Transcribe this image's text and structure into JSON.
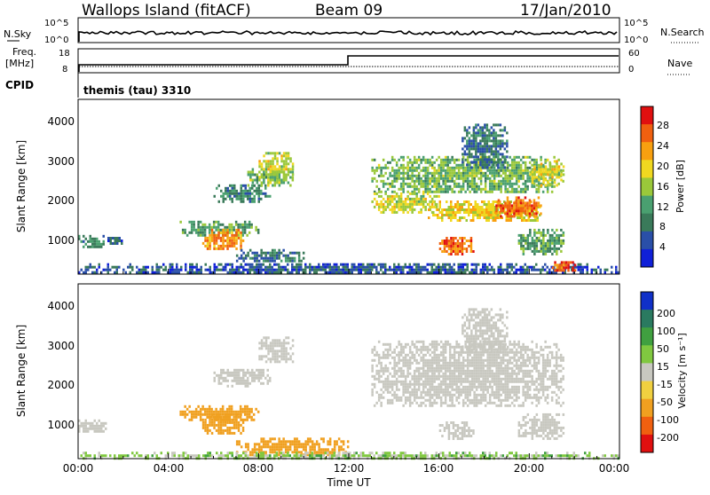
{
  "header": {
    "station": "Wallops Island (fitACF)",
    "beam": "Beam 09",
    "date": "17/Jan/2010"
  },
  "noise_panel": {
    "left_label": "N.Sky",
    "left_ticks": [
      "10^5",
      "10^0"
    ],
    "right_ticks": [
      "10^5",
      "10^0"
    ],
    "right_label": "N.Search"
  },
  "freq_panel": {
    "left_label_1": "Freq.",
    "left_label_2": "[MHz]",
    "left_ticks": [
      "18",
      "8"
    ],
    "right_ticks": [
      "60",
      "0"
    ],
    "right_label": "Nave",
    "cpid_label": "CPID"
  },
  "cpid": "themis (tau) 3310",
  "power_panel": {
    "ylabel": "Slant Range [km]",
    "yticks": [
      "4000",
      "3000",
      "2000",
      "1000"
    ],
    "colorbar_label": "Power [dB]",
    "colorbar_ticks": [
      "28",
      "24",
      "20",
      "16",
      "12",
      "8",
      "4"
    ]
  },
  "velocity_panel": {
    "ylabel": "Slant Range [km]",
    "yticks": [
      "4000",
      "3000",
      "2000",
      "1000"
    ],
    "colorbar_label": "Velocity [m s⁻¹]",
    "colorbar_ticks": [
      "200",
      "100",
      "50",
      "15",
      "-15",
      "-50",
      "-100",
      "-200"
    ]
  },
  "xaxis": {
    "label": "Time UT",
    "ticks": [
      "00:00",
      "04:00",
      "08:00",
      "12:00",
      "16:00",
      "20:00",
      "00:00"
    ]
  },
  "colors": {
    "power_scale": [
      "#1020d8",
      "#2a4fa8",
      "#3a7a5a",
      "#4aa070",
      "#9ac83a",
      "#f0d820",
      "#f8a010",
      "#f06010",
      "#e01010"
    ],
    "velocity_scale": [
      "#1030c8",
      "#2a7a60",
      "#40a040",
      "#80c840",
      "#c8c8c0",
      "#f0d040",
      "#f0a020",
      "#f06010",
      "#e01010"
    ]
  },
  "chart_data": [
    {
      "type": "heatmap",
      "name": "power",
      "xlabel": "Time UT",
      "ylabel": "Slant Range [km]",
      "xlim": [
        0,
        24
      ],
      "ylim": [
        180,
        4500
      ],
      "zlabel": "Power [dB]",
      "zlim": [
        0,
        32
      ],
      "regions": [
        {
          "t0": 0.0,
          "t1": 1.2,
          "r0": 850,
          "r1": 1150,
          "power": 10
        },
        {
          "t0": 1.2,
          "t1": 2.0,
          "r0": 950,
          "r1": 1100,
          "power": 6
        },
        {
          "t0": 4.5,
          "t1": 8.0,
          "r0": 1150,
          "r1": 1500,
          "power": 12
        },
        {
          "t0": 5.5,
          "t1": 7.3,
          "r0": 800,
          "r1": 1300,
          "power": 24
        },
        {
          "t0": 6.0,
          "t1": 8.5,
          "r0": 2000,
          "r1": 2400,
          "power": 10
        },
        {
          "t0": 7.5,
          "t1": 9.5,
          "r0": 2400,
          "r1": 2800,
          "power": 14
        },
        {
          "t0": 8.0,
          "t1": 9.5,
          "r0": 2600,
          "r1": 3200,
          "power": 18
        },
        {
          "t0": 7.0,
          "t1": 10.0,
          "r0": 500,
          "r1": 800,
          "power": 8
        },
        {
          "t0": 0.0,
          "t1": 24.0,
          "r0": 200,
          "r1": 450,
          "power": 6
        },
        {
          "t0": 13.0,
          "t1": 21.5,
          "r0": 2200,
          "r1": 3100,
          "power": 14
        },
        {
          "t0": 13.0,
          "t1": 16.0,
          "r0": 1700,
          "r1": 2200,
          "power": 18
        },
        {
          "t0": 15.5,
          "t1": 20.5,
          "r0": 1500,
          "r1": 2000,
          "power": 20
        },
        {
          "t0": 18.5,
          "t1": 20.5,
          "r0": 1600,
          "r1": 2100,
          "power": 26
        },
        {
          "t0": 16.0,
          "t1": 17.5,
          "r0": 700,
          "r1": 1100,
          "power": 26
        },
        {
          "t0": 17.0,
          "t1": 19.0,
          "r0": 2800,
          "r1": 3900,
          "power": 8
        },
        {
          "t0": 20.0,
          "t1": 21.5,
          "r0": 2400,
          "r1": 3000,
          "power": 18
        },
        {
          "t0": 19.5,
          "t1": 21.5,
          "r0": 700,
          "r1": 1300,
          "power": 12
        },
        {
          "t0": 21.0,
          "t1": 22.0,
          "r0": 250,
          "r1": 500,
          "power": 28
        }
      ]
    },
    {
      "type": "heatmap",
      "name": "velocity",
      "xlabel": "Time UT",
      "ylabel": "Slant Range [km]",
      "xlim": [
        0,
        24
      ],
      "ylim": [
        180,
        4500
      ],
      "zlabel": "Velocity [m s-1]",
      "zlim": [
        -200,
        200
      ],
      "regions": [
        {
          "t0": 0.0,
          "t1": 1.2,
          "r0": 850,
          "r1": 1150,
          "velocity": 0
        },
        {
          "t0": 4.5,
          "t1": 8.0,
          "r0": 1150,
          "r1": 1500,
          "velocity": -60
        },
        {
          "t0": 5.5,
          "t1": 7.3,
          "r0": 800,
          "r1": 1300,
          "velocity": -60
        },
        {
          "t0": 7.0,
          "t1": 12.0,
          "r0": 250,
          "r1": 700,
          "velocity": -60
        },
        {
          "t0": 6.0,
          "t1": 8.5,
          "r0": 2000,
          "r1": 2400,
          "velocity": 0
        },
        {
          "t0": 8.0,
          "t1": 9.5,
          "r0": 2600,
          "r1": 3200,
          "velocity": 0
        },
        {
          "t0": 13.0,
          "t1": 21.5,
          "r0": 1500,
          "r1": 3100,
          "velocity": 0
        },
        {
          "t0": 16.0,
          "t1": 17.5,
          "r0": 700,
          "r1": 1100,
          "velocity": 0
        },
        {
          "t0": 17.0,
          "t1": 19.0,
          "r0": 2800,
          "r1": 3900,
          "velocity": 0
        },
        {
          "t0": 19.5,
          "t1": 21.5,
          "r0": 700,
          "r1": 1300,
          "velocity": 0
        },
        {
          "t0": 0.0,
          "t1": 24.0,
          "r0": 200,
          "r1": 350,
          "velocity": 20
        }
      ]
    }
  ]
}
